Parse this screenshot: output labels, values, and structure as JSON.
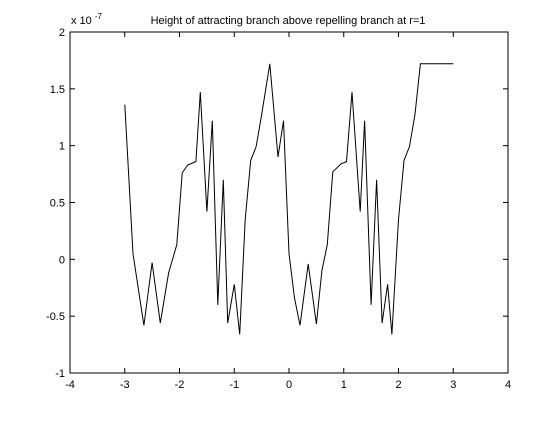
{
  "chart_data": {
    "type": "line",
    "title": "Height of attracting branch above repelling branch at r=1",
    "xlabel": "",
    "ylabel": "",
    "y_scale_label": "x 10",
    "y_scale_exponent": "-7",
    "xlim": [
      -4,
      4
    ],
    "ylim": [
      -1,
      2
    ],
    "x_ticks": [
      -4,
      -3,
      -2,
      -1,
      0,
      1,
      2,
      3,
      4
    ],
    "y_ticks": [
      -1,
      -0.5,
      0,
      0.5,
      1,
      1.5,
      2
    ],
    "x_tick_labels": [
      "-4",
      "-3",
      "-2",
      "-1",
      "0",
      "1",
      "2",
      "3",
      "4"
    ],
    "y_tick_labels": [
      "-1",
      "-0.5",
      "0",
      "0.5",
      "1",
      "1.5",
      "2"
    ],
    "grid": false,
    "line_color": "#000000",
    "series": [
      {
        "x": [
          -3.0,
          -2.85,
          -2.65,
          -2.5,
          -2.35,
          -2.2,
          -2.05,
          -1.95,
          -1.85,
          -1.7,
          -1.62,
          -1.5,
          -1.4,
          -1.3,
          -1.2,
          -1.12,
          -1.0,
          -0.9,
          -0.8,
          -0.7,
          -0.6,
          -0.5,
          -0.35,
          -0.2,
          -0.1,
          0.0,
          0.1,
          0.2,
          0.35,
          0.5,
          0.6,
          0.7,
          0.8,
          0.95,
          1.05,
          1.15,
          1.3,
          1.38,
          1.5,
          1.6,
          1.7,
          1.8,
          1.88,
          2.0,
          2.1,
          2.2,
          2.3,
          2.4,
          2.5,
          2.6,
          2.75,
          2.9,
          3.0
        ],
        "y": [
          1.36,
          0.05,
          -0.58,
          -0.03,
          -0.56,
          -0.12,
          0.13,
          0.76,
          0.83,
          0.86,
          1.47,
          0.42,
          1.22,
          -0.4,
          0.7,
          -0.56,
          -0.22,
          -0.66,
          0.35,
          0.87,
          0.99,
          1.27,
          1.72,
          0.9,
          1.22,
          0.05,
          -0.34,
          -0.58,
          -0.04,
          -0.57,
          -0.1,
          0.13,
          0.77,
          0.84,
          0.86,
          1.47,
          0.42,
          1.22,
          -0.4,
          0.7,
          -0.56,
          -0.22,
          -0.66,
          0.35,
          0.87,
          0.99,
          1.27,
          1.72,
          1.72,
          1.72,
          1.72,
          1.72,
          1.72
        ]
      }
    ]
  }
}
